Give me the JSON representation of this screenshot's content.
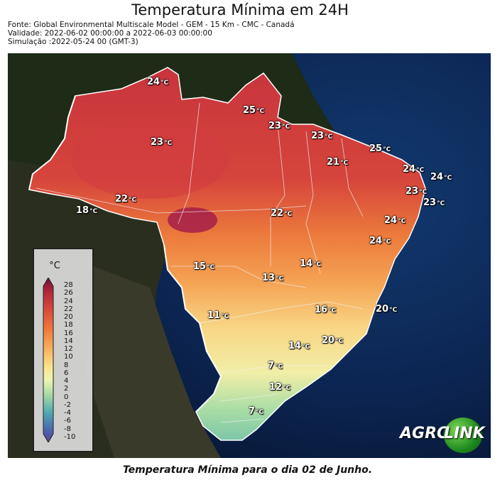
{
  "title": "Temperatura Mínima em 24H",
  "meta": {
    "source": "Fonte: Global Environmental Multiscale Model - GEM - 15 Km - CMC - Canadá",
    "validity": "Validade: 2022-06-02 00:00:00 a 2022-06-03 00:00:00",
    "simulation": "Simulação :2022-05-24 00 (GMT-3)"
  },
  "caption": "Temperatura Mínima para o dia 02 de Junho.",
  "legend": {
    "unit": "°C",
    "ticks": [
      "28",
      "26",
      "24",
      "22",
      "20",
      "18",
      "16",
      "14",
      "12",
      "10",
      "8",
      "6",
      "4",
      "2",
      "0",
      "-2",
      "-4",
      "-6",
      "-8",
      "-10"
    ]
  },
  "labels": [
    {
      "v": "24",
      "u": "°C"
    },
    {
      "v": "25",
      "u": "°C"
    },
    {
      "v": "23",
      "u": "°C"
    },
    {
      "v": "23",
      "u": "°C"
    },
    {
      "v": "23",
      "u": "°C"
    },
    {
      "v": "25",
      "u": "°C"
    },
    {
      "v": "21",
      "u": "°C"
    },
    {
      "v": "24",
      "u": "°C"
    },
    {
      "v": "24",
      "u": "°C"
    },
    {
      "v": "22",
      "u": "°C"
    },
    {
      "v": "23",
      "u": "°C"
    },
    {
      "v": "23",
      "u": "°C"
    },
    {
      "v": "18",
      "u": "°C"
    },
    {
      "v": "22",
      "u": "°C"
    },
    {
      "v": "24",
      "u": "°C"
    },
    {
      "v": "24",
      "u": "°C"
    },
    {
      "v": "15",
      "u": "°C"
    },
    {
      "v": "14",
      "u": "°C"
    },
    {
      "v": "13",
      "u": "°C"
    },
    {
      "v": "16",
      "u": "°C"
    },
    {
      "v": "20",
      "u": "°C"
    },
    {
      "v": "11",
      "u": "°C"
    },
    {
      "v": "20",
      "u": "°C"
    },
    {
      "v": "14",
      "u": "°C"
    },
    {
      "v": "7",
      "u": "°C"
    },
    {
      "v": "12",
      "u": "°C"
    },
    {
      "v": "7",
      "u": "°C"
    }
  ],
  "logo": {
    "left": "AGRO",
    "right": "LINK"
  },
  "colors": {
    "ocean": "#0b1f45",
    "land": "#1f2a18",
    "hot": "#c8343d",
    "warm": "#e8703a",
    "mild": "#f6c46a",
    "cool": "#f3eba0",
    "cold": "#8fd0a8"
  }
}
